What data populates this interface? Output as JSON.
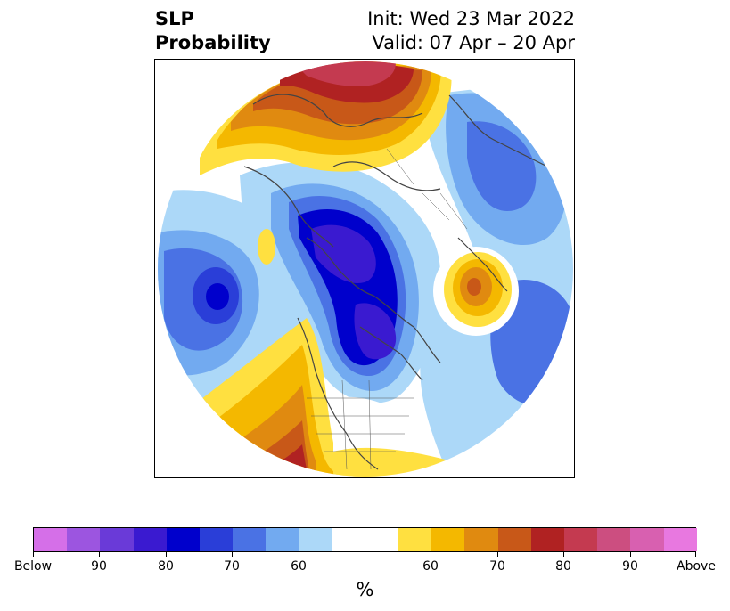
{
  "title": {
    "left_line1": "SLP",
    "left_line2": "Probability",
    "right_line1": "Init: Wed 23 Mar 2022",
    "right_line2": "Valid: 07 Apr – 20 Apr"
  },
  "colorbar": {
    "colors": [
      "#d56fe8",
      "#9c55e0",
      "#6a3ad8",
      "#3a1ad0",
      "#0000cc",
      "#2a3ed8",
      "#4a72e4",
      "#72aaf0",
      "#acd8f8",
      "#ffffff",
      "#ffe040",
      "#f4b800",
      "#e08a10",
      "#c85818",
      "#b02222",
      "#c43a50",
      "#cc4e80",
      "#d860b0",
      "#e878e0"
    ],
    "labels": [
      "Below",
      "90",
      "80",
      "70",
      "60",
      "60",
      "70",
      "80",
      "90",
      "Above"
    ],
    "unit": "%"
  },
  "map": {
    "projection": "north-polar-stereographic",
    "below_color": "#2a3ed8",
    "above_color": "#e08a10"
  }
}
